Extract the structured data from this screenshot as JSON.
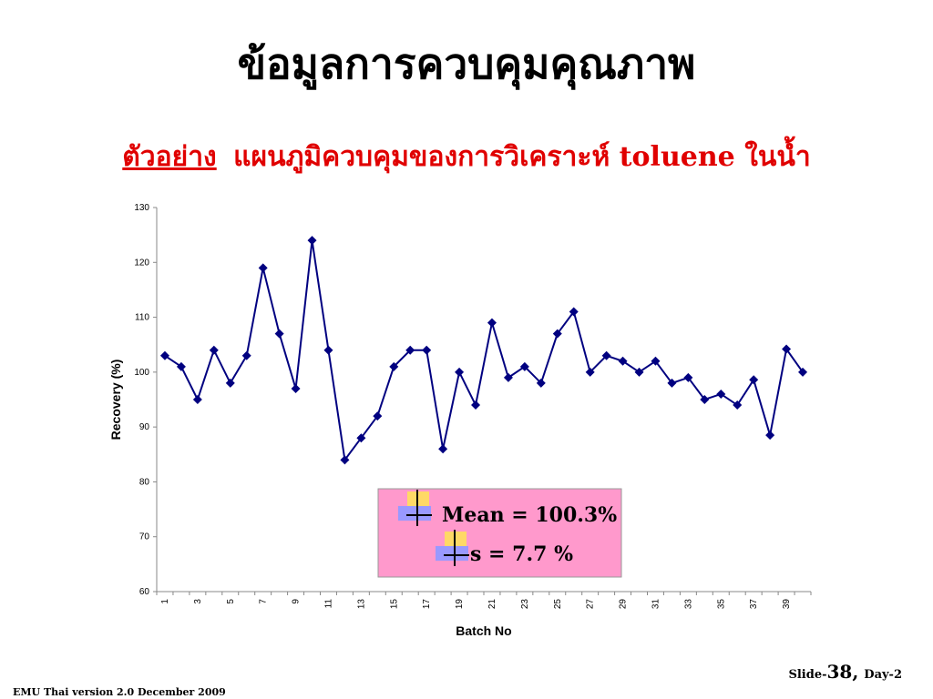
{
  "title": "ข้อมูลการควบคุมคุณภาพ",
  "subtitle": {
    "lead": "ตัวอย่าง",
    "rest": "แผนภูมิควบคุมของการวิเคราะห์ toluene ในน้ำ"
  },
  "chart_data": {
    "type": "line",
    "x_label": "Batch No",
    "y_label": "Recovery (%)",
    "categories": [
      "1",
      null,
      "3",
      null,
      "5",
      null,
      "7",
      null,
      "9",
      null,
      "11",
      null,
      "13",
      null,
      "15",
      null,
      "17",
      null,
      "19",
      null,
      "21",
      null,
      "23",
      null,
      "25",
      null,
      "27",
      null,
      "29",
      null,
      "31",
      null,
      "33",
      null,
      "35",
      null,
      "37",
      null,
      "39",
      null
    ],
    "series": [
      {
        "name": "Recovery",
        "color": "#000080",
        "values": [
          103,
          101,
          95,
          104,
          98,
          103,
          119,
          107,
          97,
          124,
          104,
          84,
          88,
          92,
          101,
          104,
          104,
          86,
          100,
          94,
          109,
          99,
          101,
          98,
          107,
          111,
          100,
          103,
          102,
          100,
          102,
          98,
          99,
          95,
          96,
          94,
          98.6,
          88.5,
          104.2,
          100
        ]
      }
    ],
    "ylim": [
      60,
      130
    ],
    "yticks": [
      60,
      70,
      80,
      90,
      100,
      110,
      120,
      130
    ],
    "grid": false,
    "annotations": [
      "Mean = 100.3%",
      "s = 7.7 %"
    ]
  },
  "footer": {
    "left": "EMU Thai version 2.0 December 2009",
    "slide": "Slide-",
    "number": "38,",
    "day": "Day-2"
  }
}
